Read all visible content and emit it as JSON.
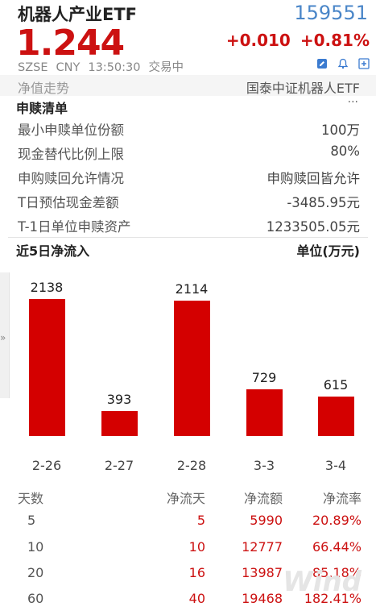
{
  "header": {
    "name": "机器人产业ETF",
    "code": "159551",
    "price": "1.244",
    "change": "+0.010",
    "change_pct": "+0.81%",
    "exchange": "SZSE",
    "currency": "CNY",
    "time": "13:50:30",
    "status": "交易中"
  },
  "nav": {
    "left": "净值走势",
    "right": "国泰中证机器人ETF"
  },
  "subscription": {
    "title": "申赎清单",
    "more": "···",
    "rows": [
      {
        "label": "最小申赎单位份额",
        "value": "100万"
      },
      {
        "label": "现金替代比例上限",
        "value": "80%"
      },
      {
        "label": "申购赎回允许情况",
        "value": "申购赎回皆允许"
      },
      {
        "label": "T日预估现金差额",
        "value": "-3485.95元"
      },
      {
        "label": "T-1日单位申赎资产",
        "value": "1233505.05元"
      }
    ]
  },
  "flow": {
    "title": "近5日净流入",
    "unit": "单位(万元)"
  },
  "chart_data": {
    "type": "bar",
    "title": "近5日净流入",
    "unit": "单位(万元)",
    "categories": [
      "2-26",
      "2-27",
      "2-28",
      "3-3",
      "3-4"
    ],
    "values": [
      2138,
      393,
      2114,
      729,
      615
    ],
    "ylim": [
      0,
      2138
    ],
    "colors": {
      "bar": "#d40000"
    }
  },
  "flow_table": {
    "headers": [
      "天数",
      "净流天",
      "净流额",
      "净流率"
    ],
    "rows": [
      [
        "5",
        "5",
        "5990",
        "20.89%"
      ],
      [
        "10",
        "10",
        "12777",
        "66.44%"
      ],
      [
        "20",
        "16",
        "13987",
        "85.18%"
      ],
      [
        "60",
        "40",
        "19468",
        "182.41%"
      ]
    ]
  },
  "edge": {
    "arrow": "»"
  },
  "watermark": "Wind"
}
